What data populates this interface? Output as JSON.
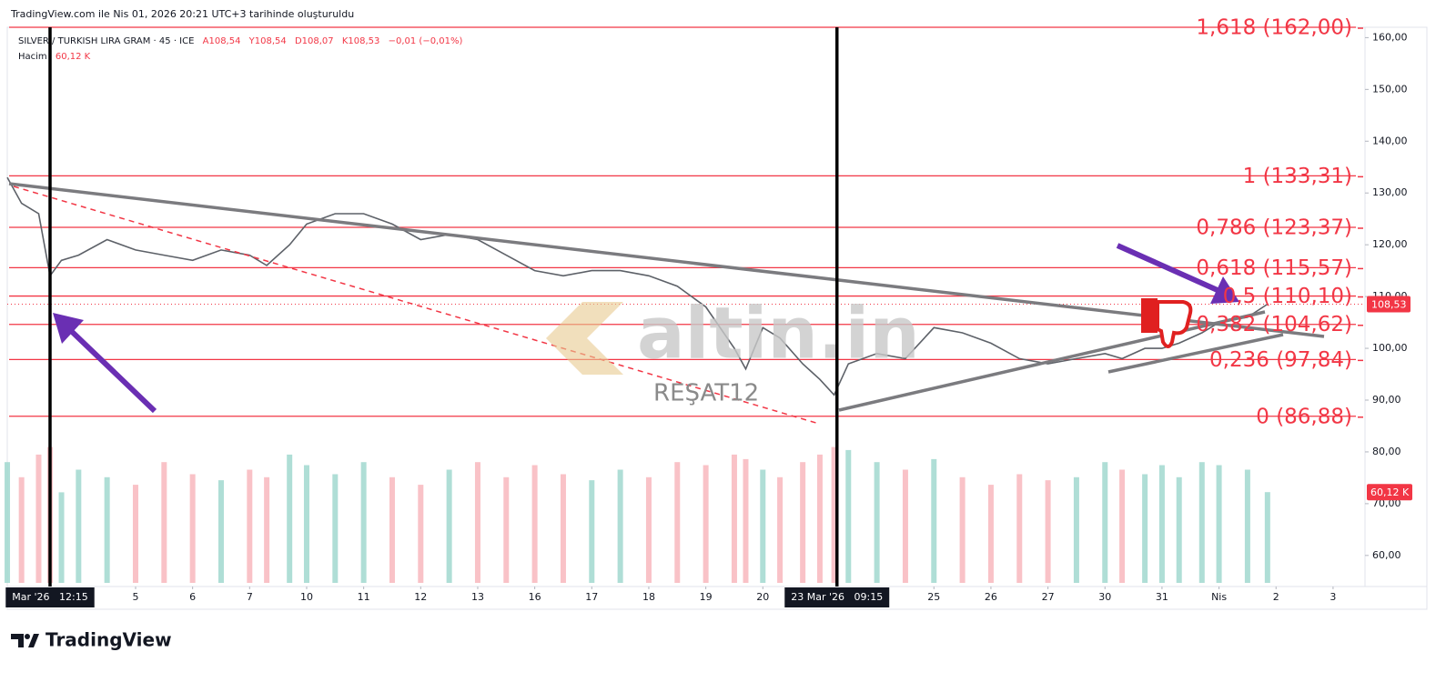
{
  "chart_data": {
    "type": "line",
    "header": "TradingView.com ile Nis 01, 2026 20:21 UTC+3 tarihinde oluşturuldu",
    "symbol": "SILVER / TURKISH LIRA GRAM · 45 · ICE",
    "ohlc": [
      "A108,54",
      "Y108,54",
      "D108,07",
      "K108,53",
      "−0,01 (−0,01%)"
    ],
    "volume_title": "Hacim",
    "volume_legend": "60,12 K",
    "volume_tag": "60,12 K",
    "watermark": "altin.in",
    "watermark_note": "REŞAT12",
    "brand": "TradingView",
    "color": "#5d6168",
    "x": [
      -1.25,
      -1,
      -0.7,
      -0.5,
      -0.3,
      0,
      0.5,
      1,
      1.5,
      2,
      2.5,
      3,
      3.3,
      3.7,
      4,
      4.5,
      5,
      5.5,
      6,
      6.5,
      7,
      7.5,
      8,
      8.5,
      9,
      9.5,
      10,
      10.5,
      11,
      11.5,
      11.7,
      12,
      12.3,
      12.7,
      13,
      13.25,
      13.5,
      14,
      14.5,
      15,
      15.5,
      16,
      16.5,
      17,
      17.5,
      18,
      18.3,
      18.7,
      19,
      19.3,
      19.7,
      20,
      20.5,
      20.85
    ],
    "values": [
      133,
      128,
      126,
      114,
      117,
      118,
      121,
      119,
      118,
      117,
      119,
      118,
      116,
      120,
      124,
      126,
      126,
      124,
      121,
      122,
      121,
      118,
      115,
      114,
      115,
      115,
      114,
      112,
      108,
      100,
      96,
      104,
      102,
      97,
      94,
      91,
      97,
      99,
      98,
      104,
      103,
      101,
      98,
      97,
      98,
      99,
      98,
      100,
      100,
      101,
      103,
      105,
      106,
      108.53
    ],
    "volume": [
      80,
      70,
      85,
      90,
      60,
      75,
      70,
      65,
      80,
      72,
      68,
      75,
      70,
      85,
      78,
      72,
      80,
      70,
      65,
      75,
      80,
      70,
      78,
      72,
      68,
      75,
      70,
      80,
      78,
      85,
      82,
      75,
      70,
      80,
      85,
      90,
      88,
      80,
      75,
      82,
      70,
      65,
      72,
      68,
      70,
      80,
      75,
      72,
      78,
      70,
      80,
      78,
      75,
      60.12
    ],
    "volume_lim": [
      0,
      100
    ],
    "xlim": [
      -1.25,
      22.56
    ],
    "ylim": [
      54,
      162
    ],
    "yticks": [
      {
        "value": 60,
        "label": "60,00"
      },
      {
        "value": 70,
        "label": "70,00"
      },
      {
        "value": 80,
        "label": "80,00"
      },
      {
        "value": 90,
        "label": "90,00"
      },
      {
        "value": 100,
        "label": "100,00"
      },
      {
        "value": 110,
        "label": "110,00"
      },
      {
        "value": 120,
        "label": "120,00"
      },
      {
        "value": 130,
        "label": "130,00"
      },
      {
        "value": 140,
        "label": "140,00"
      },
      {
        "value": 150,
        "label": "150,00"
      },
      {
        "value": 160,
        "label": "160,00"
      }
    ],
    "xticks": [
      {
        "value": 1,
        "label": "5"
      },
      {
        "value": 2,
        "label": "6"
      },
      {
        "value": 3,
        "label": "7"
      },
      {
        "value": 4,
        "label": "10"
      },
      {
        "value": 5,
        "label": "11"
      },
      {
        "value": 6,
        "label": "12"
      },
      {
        "value": 7,
        "label": "13"
      },
      {
        "value": 8,
        "label": "16"
      },
      {
        "value": 9,
        "label": "17"
      },
      {
        "value": 10,
        "label": "18"
      },
      {
        "value": 11,
        "label": "19"
      },
      {
        "value": 12,
        "label": "20"
      },
      {
        "value": 15,
        "label": "25"
      },
      {
        "value": 16,
        "label": "26"
      },
      {
        "value": 17,
        "label": "27"
      },
      {
        "value": 18,
        "label": "30"
      },
      {
        "value": 19,
        "label": "31"
      },
      {
        "value": 20,
        "label": "Nis"
      },
      {
        "value": 21,
        "label": "2"
      },
      {
        "value": 22,
        "label": "3"
      }
    ],
    "time_markers": [
      {
        "value": -0.5,
        "label": "Mar '26   12:15"
      },
      {
        "value": 13.3,
        "label": "23 Mar '26   09:15"
      }
    ],
    "fib_levels": [
      {
        "value": 162,
        "label": "1,618 (162,00)"
      },
      {
        "value": 133.31,
        "label": "1 (133,31)"
      },
      {
        "value": 123.37,
        "label": "0,786 (123,37)"
      },
      {
        "value": 115.57,
        "label": "0,618 (115,57)"
      },
      {
        "value": 110.1,
        "label": "0,5 (110,10)"
      },
      {
        "value": 104.62,
        "label": "0,382 (104,62)"
      },
      {
        "value": 97.84,
        "label": "0,236 (97,84)"
      },
      {
        "value": 86.88,
        "label": "0 (86,88)"
      }
    ],
    "fib_color": "#f23645",
    "last_price": {
      "value": 108.53,
      "label": "108,53"
    }
  }
}
